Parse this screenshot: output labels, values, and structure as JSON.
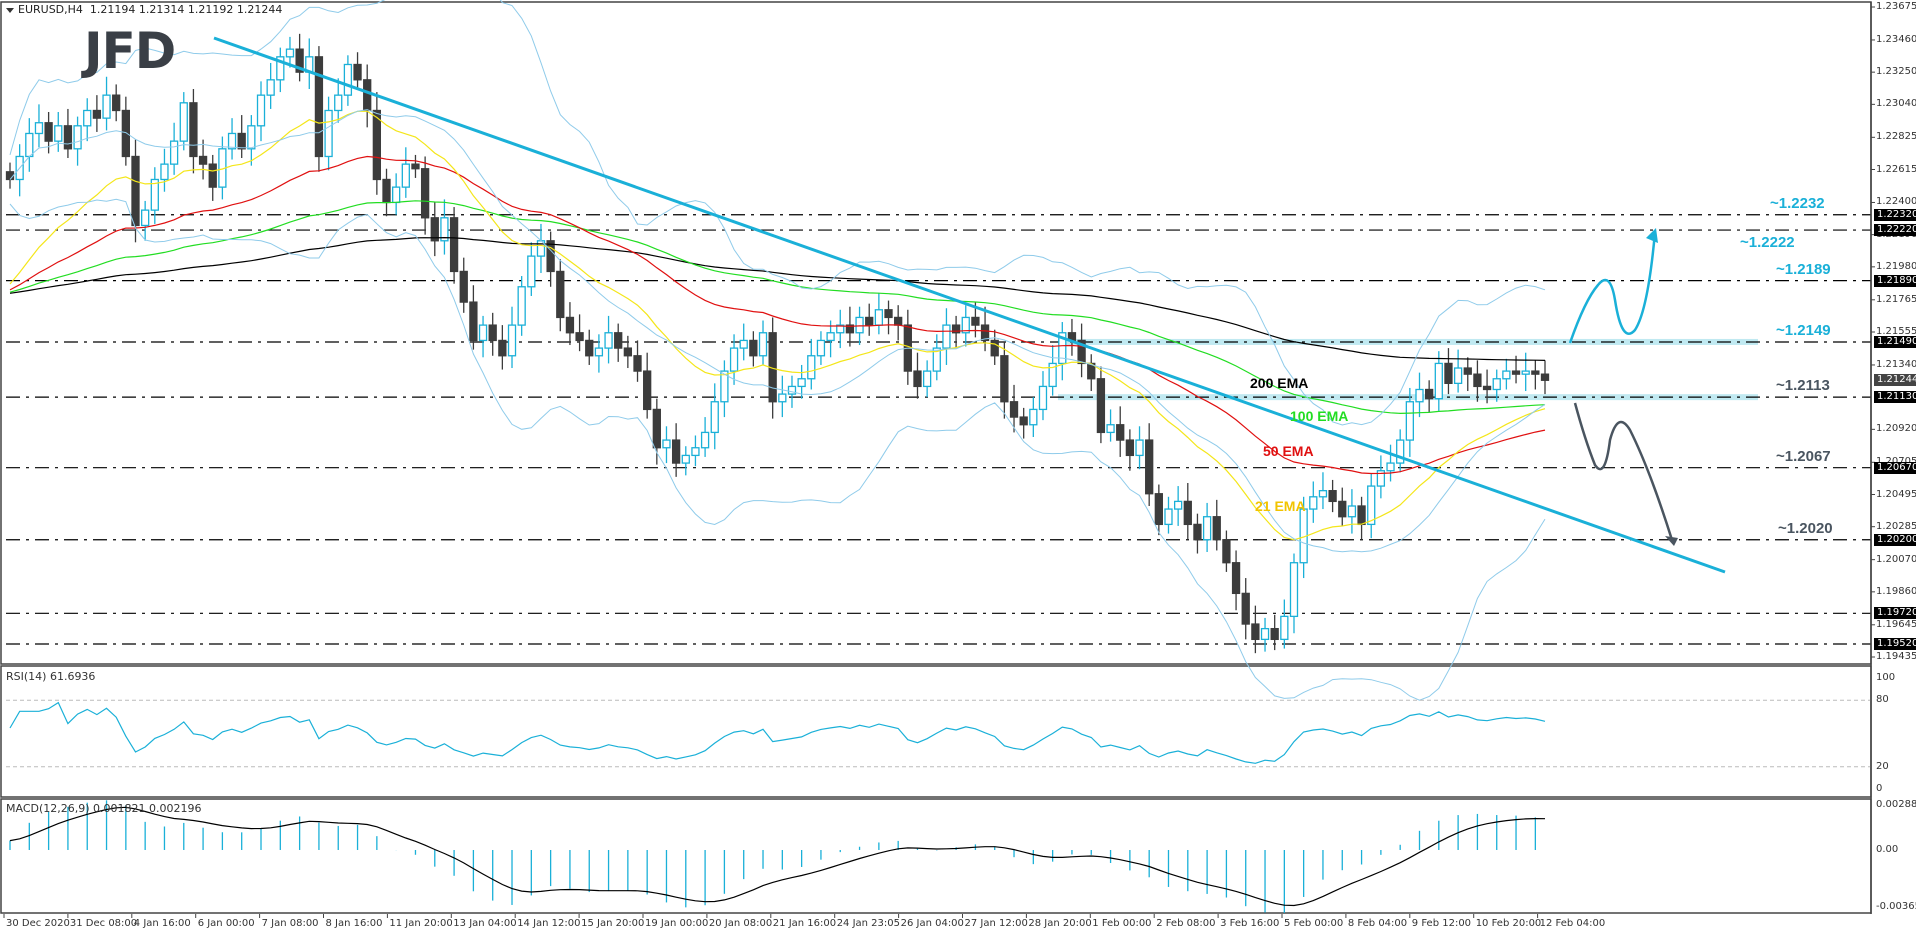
{
  "header": {
    "symbol": "EURUSD,H4",
    "ohlc": "1.21194 1.21314 1.21192 1.21244"
  },
  "logo": {
    "text": "JFD"
  },
  "colors": {
    "bull": "#1ab0d8",
    "bear": "#3c3c3c",
    "trendline": "#1ab0d8",
    "bollinger": "#8fcbea",
    "ema21": "#f4e61a",
    "ema50": "#e01010",
    "ema100": "#22dd22",
    "ema200": "#000000",
    "level_blue": "#1ab0d8",
    "level_gray": "#4a5560",
    "zone": "#b0e4ee",
    "rsi": "#1ab0d8",
    "macd_hist": "#1ab0d8",
    "macd_signal": "#000000"
  },
  "chart_data": {
    "type": "candlestick",
    "title": "EURUSD,H4",
    "price_axis": {
      "ticks": [
        "1.23675",
        "1.23460",
        "1.23250",
        "1.23040",
        "1.22825",
        "1.22615",
        "1.22400",
        "1.22190",
        "1.21980",
        "1.21765",
        "1.21555",
        "1.21340",
        "1.20920",
        "1.20705",
        "1.20495",
        "1.20285",
        "1.20070",
        "1.19860",
        "1.19645",
        "1.19435"
      ],
      "ylim": [
        1.19435,
        1.23675
      ],
      "current_price": "1.21244",
      "level_tags": [
        "1.22320",
        "1.22220",
        "1.21890",
        "1.21490",
        "1.21130",
        "1.20670",
        "1.20200",
        "1.19720",
        "1.19520"
      ]
    },
    "time_axis": [
      "30 Dec 2020",
      "31 Dec 08:00",
      "4 Jan 16:00",
      "6 Jan 00:00",
      "7 Jan 08:00",
      "8 Jan 16:00",
      "11 Jan 20:00",
      "13 Jan 04:00",
      "14 Jan 12:00",
      "15 Jan 20:00",
      "19 Jan 00:00",
      "20 Jan 08:00",
      "21 Jan 16:00",
      "24 Jan 23:05",
      "26 Jan 04:00",
      "27 Jan 12:00",
      "28 Jan 20:00",
      "1 Feb 00:00",
      "2 Feb 08:00",
      "3 Feb 16:00",
      "5 Feb 00:00",
      "8 Feb 04:00",
      "9 Feb 12:00",
      "10 Feb 20:00",
      "12 Feb 04:00"
    ],
    "levels": [
      {
        "price": 1.2232,
        "label": "~1.2232",
        "style": "blue"
      },
      {
        "price": 1.2222,
        "label": "~1.2222",
        "style": "blue"
      },
      {
        "price": 1.2189,
        "label": "~1.2189",
        "style": "blue"
      },
      {
        "price": 1.2149,
        "label": "~1.2149",
        "style": "blue"
      },
      {
        "price": 1.2113,
        "label": "~1.2113",
        "style": "gray"
      },
      {
        "price": 1.2067,
        "label": "~1.2067",
        "style": "gray"
      },
      {
        "price": 1.202,
        "label": "~1.2020",
        "style": "gray"
      },
      {
        "price": 1.1972,
        "label": "",
        "style": "none"
      },
      {
        "price": 1.1952,
        "label": "",
        "style": "none"
      }
    ],
    "indicators": {
      "ema_labels": [
        "200 EMA",
        "100 EMA",
        "50 EMA",
        "21 EMA"
      ],
      "bollinger": true
    },
    "close_series": [
      1.2255,
      1.227,
      1.2285,
      1.2292,
      1.228,
      1.229,
      1.2275,
      1.229,
      1.23,
      1.2295,
      1.231,
      1.23,
      1.227,
      1.2225,
      1.2235,
      1.2255,
      1.2265,
      1.228,
      1.2305,
      1.227,
      1.2265,
      1.225,
      1.2275,
      1.2285,
      1.2275,
      1.229,
      1.231,
      1.232,
      1.2335,
      1.234,
      1.2325,
      1.2335,
      1.227,
      1.23,
      1.231,
      1.233,
      1.232,
      1.23,
      1.2255,
      1.224,
      1.225,
      1.2265,
      1.2262,
      1.223,
      1.2215,
      1.223,
      1.2195,
      1.2175,
      1.215,
      1.216,
      1.215,
      1.214,
      1.216,
      1.2185,
      1.2205,
      1.2215,
      1.2195,
      1.2165,
      1.2155,
      1.215,
      1.214,
      1.2145,
      1.2155,
      1.2145,
      1.214,
      1.213,
      1.2105,
      1.208,
      1.2085,
      1.207,
      1.2075,
      1.208,
      1.209,
      1.211,
      1.213,
      1.2145,
      1.215,
      1.214,
      1.2155,
      1.211,
      1.2115,
      1.212,
      1.2125,
      1.214,
      1.215,
      1.2155,
      1.216,
      1.2155,
      1.2165,
      1.216,
      1.217,
      1.2165,
      1.216,
      1.213,
      1.212,
      1.213,
      1.2145,
      1.216,
      1.2155,
      1.2165,
      1.216,
      1.215,
      1.214,
      1.211,
      1.21,
      1.2095,
      1.2105,
      1.212,
      1.2135,
      1.2155,
      1.215,
      1.2135,
      1.2125,
      1.209,
      1.2095,
      1.2085,
      1.2075,
      1.2085,
      1.205,
      1.203,
      1.204,
      1.2045,
      1.203,
      1.202,
      1.2035,
      1.202,
      1.2005,
      1.1985,
      1.1965,
      1.1955,
      1.1962,
      1.1955,
      1.197,
      1.2005,
      1.204,
      1.2048,
      1.2052,
      1.2045,
      1.2035,
      1.2042,
      1.203,
      1.2055,
      1.2065,
      1.207,
      1.2085,
      1.211,
      1.2118,
      1.2112,
      1.2135,
      1.2122,
      1.2132,
      1.2128,
      1.212,
      1.2118,
      1.2125,
      1.213,
      1.2128,
      1.213,
      1.2128,
      1.2124
    ],
    "rsi": {
      "label": "RSI(14) 61.6936",
      "period": 14,
      "value": 61.6936,
      "ylim": [
        0,
        100
      ],
      "levels": [
        20,
        80
      ]
    },
    "macd": {
      "label": "MACD(12,26,9) 0.001821 0.002196",
      "params": [
        12,
        26,
        9
      ],
      "main": 0.001821,
      "signal": 0.002196,
      "ticks": [
        "0.002883",
        "0.00",
        "-0.003654"
      ],
      "ylim": [
        -0.003654,
        0.002883
      ]
    }
  },
  "rsi_axis": [
    "100",
    "80",
    "20",
    "0"
  ]
}
